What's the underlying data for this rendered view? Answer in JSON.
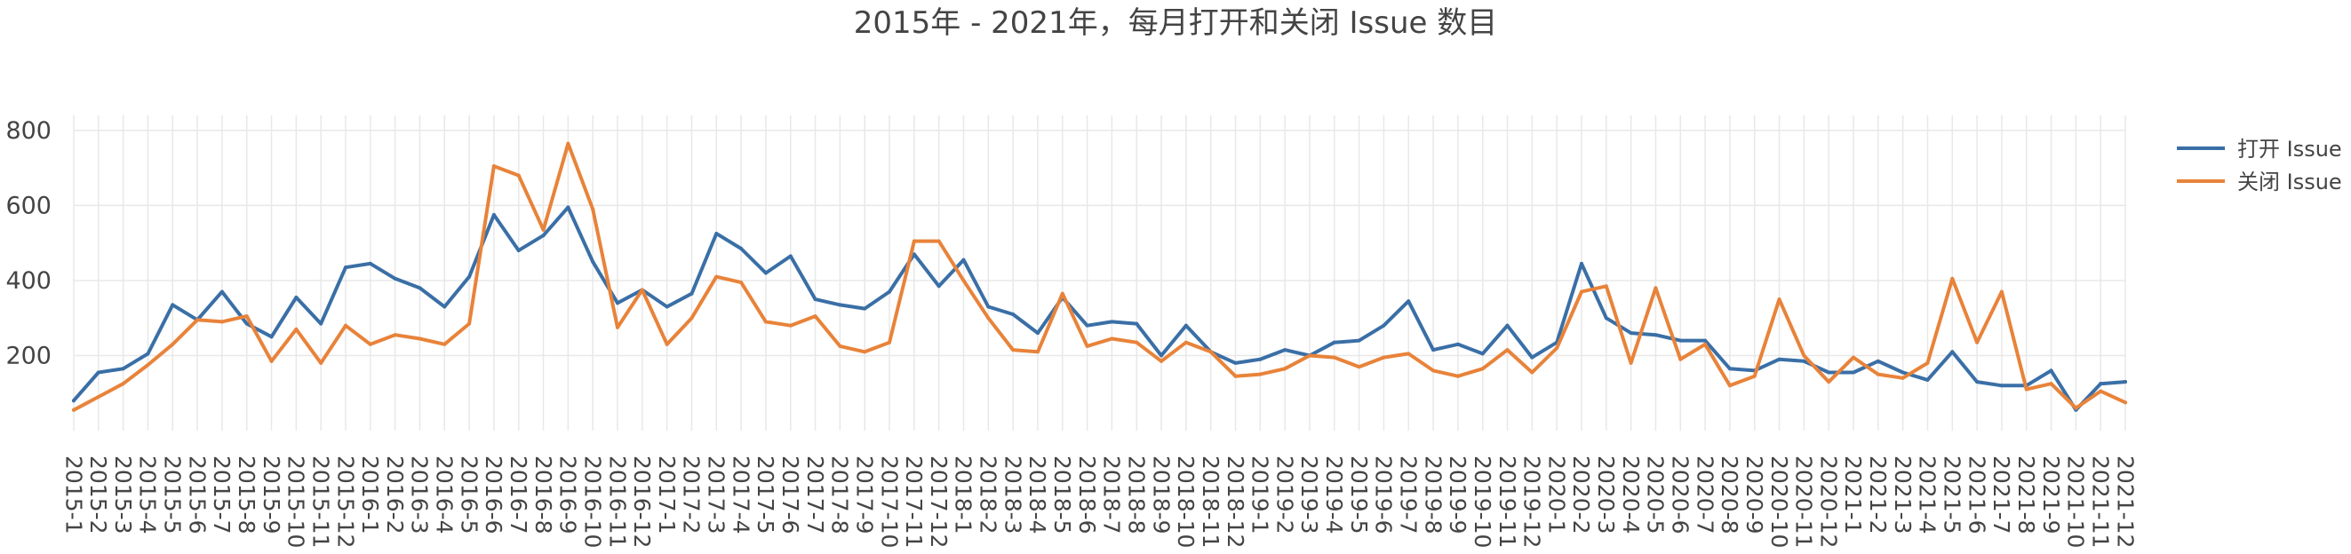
{
  "chart_data": {
    "type": "line",
    "title": "2015年 - 2021年，每月打开和关闭 Issue 数目",
    "xlabel": "",
    "ylabel": "",
    "ylim": [
      0,
      840
    ],
    "yticks": [
      200,
      400,
      600,
      800
    ],
    "grid": true,
    "legend_position": "right",
    "x": [
      "2015-1",
      "2015-2",
      "2015-3",
      "2015-4",
      "2015-5",
      "2015-6",
      "2015-7",
      "2015-8",
      "2015-9",
      "2015-10",
      "2015-11",
      "2015-12",
      "2016-1",
      "2016-2",
      "2016-3",
      "2016-4",
      "2016-5",
      "2016-6",
      "2016-7",
      "2016-8",
      "2016-9",
      "2016-10",
      "2016-11",
      "2016-12",
      "2017-1",
      "2017-2",
      "2017-3",
      "2017-4",
      "2017-5",
      "2017-6",
      "2017-7",
      "2017-8",
      "2017-9",
      "2017-10",
      "2017-11",
      "2017-12",
      "2018-1",
      "2018-2",
      "2018-3",
      "2018-4",
      "2018-5",
      "2018-6",
      "2018-7",
      "2018-8",
      "2018-9",
      "2018-10",
      "2018-11",
      "2018-12",
      "2019-1",
      "2019-2",
      "2019-3",
      "2019-4",
      "2019-5",
      "2019-6",
      "2019-7",
      "2019-8",
      "2019-9",
      "2019-10",
      "2019-11",
      "2019-12",
      "2020-1",
      "2020-2",
      "2020-3",
      "2020-4",
      "2020-5",
      "2020-6",
      "2020-7",
      "2020-8",
      "2020-9",
      "2020-10",
      "2020-11",
      "2020-12",
      "2021-1",
      "2021-2",
      "2021-3",
      "2021-4",
      "2021-5",
      "2021-6",
      "2021-7",
      "2021-8",
      "2021-9",
      "2021-10",
      "2021-11",
      "2021-12"
    ],
    "series": [
      {
        "name": "打开 Issue",
        "color": "#3a6fa6",
        "values": [
          80,
          155,
          165,
          205,
          335,
          295,
          370,
          285,
          250,
          355,
          285,
          435,
          445,
          405,
          380,
          330,
          410,
          575,
          480,
          520,
          595,
          450,
          340,
          375,
          330,
          365,
          525,
          485,
          420,
          465,
          350,
          335,
          325,
          370,
          470,
          385,
          455,
          330,
          310,
          260,
          355,
          280,
          290,
          285,
          200,
          280,
          210,
          180,
          190,
          215,
          200,
          235,
          240,
          280,
          345,
          215,
          230,
          205,
          280,
          195,
          235,
          445,
          300,
          260,
          255,
          240,
          240,
          165,
          160,
          190,
          185,
          155,
          155,
          185,
          155,
          135,
          210,
          130,
          120,
          120,
          160,
          55,
          125,
          130
        ]
      },
      {
        "name": "关闭 Issue",
        "color": "#e8833a",
        "values": [
          55,
          90,
          125,
          175,
          230,
          295,
          290,
          305,
          185,
          270,
          180,
          280,
          230,
          255,
          245,
          230,
          285,
          705,
          680,
          535,
          765,
          590,
          275,
          375,
          230,
          300,
          410,
          395,
          290,
          280,
          305,
          225,
          210,
          235,
          505,
          505,
          400,
          300,
          215,
          210,
          365,
          225,
          245,
          235,
          185,
          235,
          210,
          145,
          150,
          165,
          200,
          195,
          170,
          195,
          205,
          160,
          145,
          165,
          215,
          155,
          220,
          370,
          385,
          180,
          380,
          190,
          230,
          120,
          145,
          350,
          200,
          130,
          195,
          150,
          140,
          180,
          405,
          235,
          370,
          110,
          125,
          60,
          105,
          75
        ]
      }
    ]
  }
}
